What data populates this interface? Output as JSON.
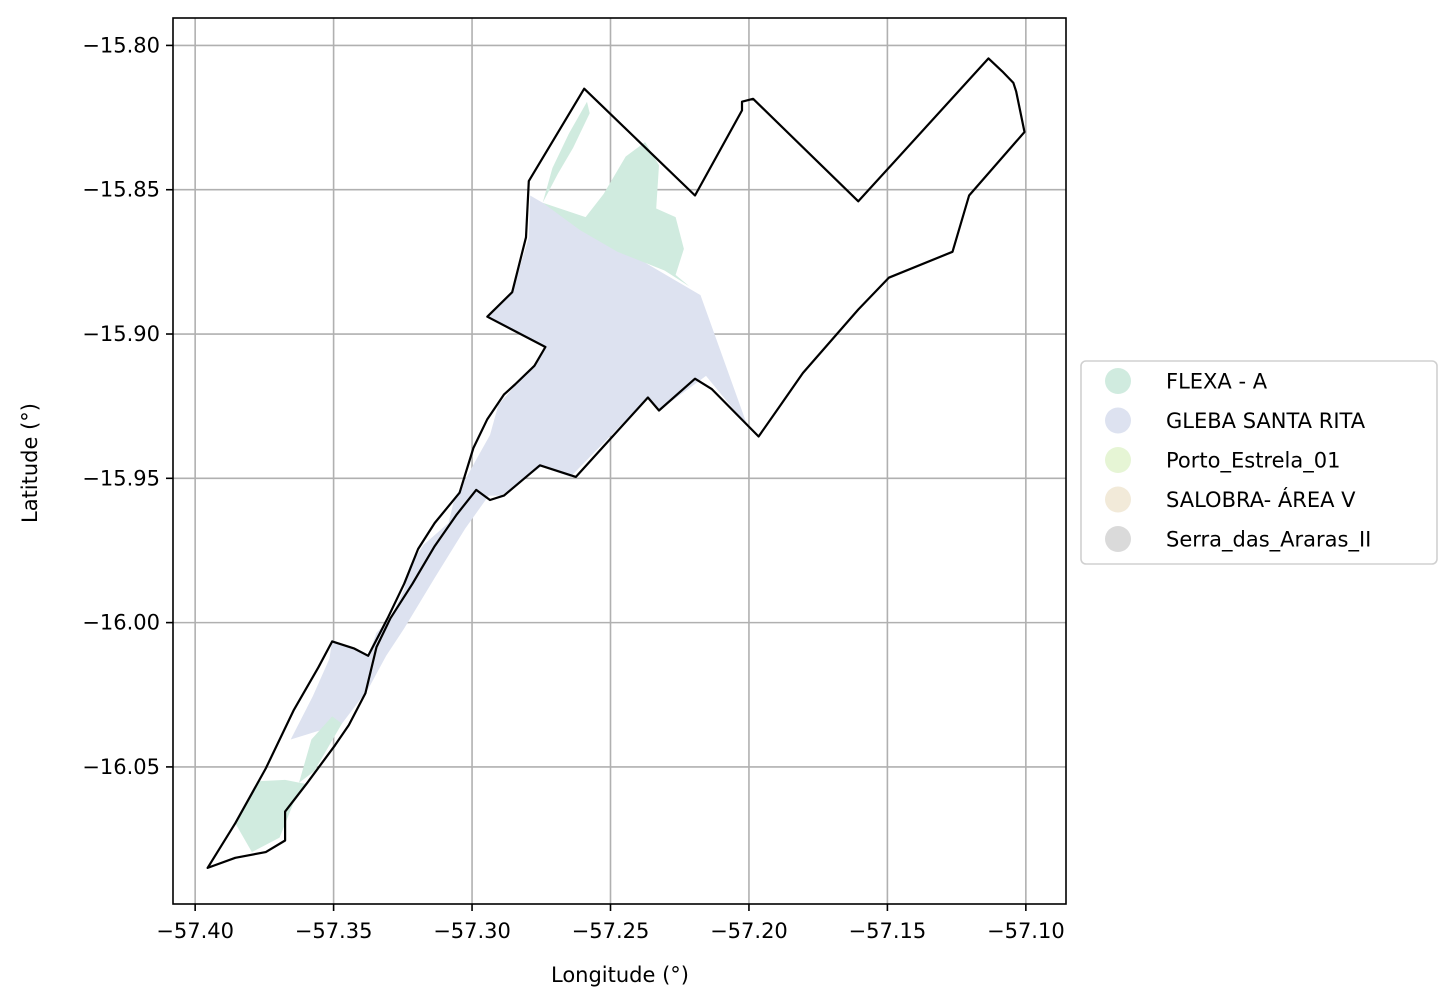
{
  "chart_data": {
    "type": "choropleth-map",
    "xlabel": "Longitude (°)",
    "ylabel": "Latitude (°)",
    "xlim": [
      -57.408,
      -57.0855
    ],
    "ylim": [
      -16.0975,
      -15.7905
    ],
    "grid": true,
    "x_ticks": [
      -57.4,
      -57.35,
      -57.3,
      -57.25,
      -57.2,
      -57.15,
      -57.1
    ],
    "x_tick_labels": [
      "−57.40",
      "−57.35",
      "−57.30",
      "−57.25",
      "−57.20",
      "−57.15",
      "−57.10"
    ],
    "y_ticks": [
      -15.8,
      -15.85,
      -15.9,
      -15.95,
      -16.0,
      -16.05
    ],
    "y_tick_labels": [
      "−15.80",
      "−15.85",
      "−15.90",
      "−15.95",
      "−16.00",
      "−16.05"
    ],
    "legend_position": "right",
    "legend": [
      {
        "label": "FLEXA - A",
        "color": "#d0ebdf"
      },
      {
        "label": "GLEBA SANTA RITA",
        "color": "#dde2f0"
      },
      {
        "label": "Porto_Estrela_01",
        "color": "#e6f5d5"
      },
      {
        "label": "SALOBRA- ÁREA V",
        "color": "#f2ead9"
      },
      {
        "label": "Serra_das_Araras_II",
        "color": "#dadada"
      }
    ],
    "regions": [
      {
        "name": "GLEBA SANTA RITA",
        "color": "#dde2f0",
        "coords": [
          [
            -57.279,
            -15.852
          ],
          [
            -57.2175,
            -15.8865
          ],
          [
            -57.2005,
            -15.932
          ],
          [
            -57.2155,
            -15.9145
          ],
          [
            -57.2325,
            -15.9265
          ],
          [
            -57.2365,
            -15.922
          ],
          [
            -57.2645,
            -15.9495
          ],
          [
            -57.275,
            -15.946
          ],
          [
            -57.2895,
            -15.956
          ],
          [
            -57.294,
            -15.956
          ],
          [
            -57.3025,
            -15.9675
          ],
          [
            -57.3135,
            -15.9845
          ],
          [
            -57.3245,
            -16.002
          ],
          [
            -57.331,
            -16.0115
          ],
          [
            -57.3375,
            -16.023
          ],
          [
            -57.347,
            -16.035
          ],
          [
            -57.3655,
            -16.0405
          ],
          [
            -57.3575,
            -16.0255
          ],
          [
            -57.3515,
            -16.0125
          ],
          [
            -57.3505,
            -16.006
          ],
          [
            -57.3445,
            -16.0085
          ],
          [
            -57.3375,
            -16.0115
          ],
          [
            -57.3345,
            -16.0035
          ],
          [
            -57.3295,
            -15.9985
          ],
          [
            -57.3245,
            -15.9885
          ],
          [
            -57.3225,
            -15.9805
          ],
          [
            -57.3175,
            -15.973
          ],
          [
            -57.3085,
            -15.9655
          ],
          [
            -57.3065,
            -15.9575
          ],
          [
            -57.2985,
            -15.9435
          ],
          [
            -57.2935,
            -15.935
          ],
          [
            -57.2905,
            -15.9245
          ],
          [
            -57.2845,
            -15.918
          ],
          [
            -57.2775,
            -15.9115
          ],
          [
            -57.2735,
            -15.9045
          ],
          [
            -57.2945,
            -15.894
          ],
          [
            -57.2855,
            -15.8855
          ],
          [
            -57.2825,
            -15.876
          ],
          [
            -57.2795,
            -15.8665
          ]
        ]
      },
      {
        "name": "FLEXA - A",
        "color": "#d0ebdf",
        "coords": [
          [
            -57.2745,
            -15.8545
          ],
          [
            -57.259,
            -15.8595
          ],
          [
            -57.2525,
            -15.8515
          ],
          [
            -57.2445,
            -15.8385
          ],
          [
            -57.2375,
            -15.8335
          ],
          [
            -57.2325,
            -15.8415
          ],
          [
            -57.2335,
            -15.8565
          ],
          [
            -57.2265,
            -15.8595
          ],
          [
            -57.2235,
            -15.8705
          ],
          [
            -57.2265,
            -15.8795
          ],
          [
            -57.2215,
            -15.8835
          ],
          [
            -57.2305,
            -15.878
          ],
          [
            -57.2475,
            -15.8715
          ],
          [
            -57.261,
            -15.864
          ]
        ]
      },
      {
        "name": "FLEXA - A",
        "color": "#d0ebdf",
        "coords": [
          [
            -57.2745,
            -15.8545
          ],
          [
            -57.271,
            -15.8425
          ],
          [
            -57.265,
            -15.8305
          ],
          [
            -57.2585,
            -15.8195
          ],
          [
            -57.2575,
            -15.8235
          ],
          [
            -57.2635,
            -15.8355
          ],
          [
            -57.269,
            -15.8445
          ]
        ]
      },
      {
        "name": "FLEXA - A",
        "color": "#d0ebdf",
        "coords": [
          [
            -57.3775,
            -16.055
          ],
          [
            -57.3855,
            -16.0695
          ],
          [
            -57.3795,
            -16.0795
          ],
          [
            -57.3695,
            -16.0745
          ],
          [
            -57.3645,
            -16.0625
          ],
          [
            -57.3595,
            -16.056
          ],
          [
            -57.3675,
            -16.0545
          ]
        ]
      },
      {
        "name": "FLEXA - A",
        "color": "#d0ebdf",
        "coords": [
          [
            -57.358,
            -16.0405
          ],
          [
            -57.3505,
            -16.0325
          ],
          [
            -57.347,
            -16.035
          ],
          [
            -57.357,
            -16.0515
          ],
          [
            -57.3625,
            -16.0555
          ]
        ]
      }
    ],
    "boundary": [
      [
        -57.2595,
        -15.815
      ],
      [
        -57.2195,
        -15.852
      ],
      [
        -57.2025,
        -15.8225
      ],
      [
        -57.2025,
        -15.8195
      ],
      [
        -57.1985,
        -15.8185
      ],
      [
        -57.1605,
        -15.854
      ],
      [
        -57.1135,
        -15.8045
      ],
      [
        -57.1085,
        -15.809
      ],
      [
        -57.1045,
        -15.813
      ],
      [
        -57.1035,
        -15.816
      ],
      [
        -57.1005,
        -15.83
      ],
      [
        -57.1205,
        -15.852
      ],
      [
        -57.1265,
        -15.8715
      ],
      [
        -57.1495,
        -15.8805
      ],
      [
        -57.1605,
        -15.8915
      ],
      [
        -57.1805,
        -15.9135
      ],
      [
        -57.1885,
        -15.9245
      ],
      [
        -57.1965,
        -15.9355
      ],
      [
        -57.2135,
        -15.919
      ],
      [
        -57.2195,
        -15.9155
      ],
      [
        -57.2325,
        -15.9265
      ],
      [
        -57.2365,
        -15.922
      ],
      [
        -57.2625,
        -15.9495
      ],
      [
        -57.2755,
        -15.9455
      ],
      [
        -57.2885,
        -15.956
      ],
      [
        -57.2935,
        -15.9575
      ],
      [
        -57.2985,
        -15.954
      ],
      [
        -57.3055,
        -15.9625
      ],
      [
        -57.3135,
        -15.9735
      ],
      [
        -57.3215,
        -15.9865
      ],
      [
        -57.3295,
        -15.9985
      ],
      [
        -57.3345,
        -16.0085
      ],
      [
        -57.3385,
        -16.0245
      ],
      [
        -57.3445,
        -16.0355
      ],
      [
        -57.3495,
        -16.0425
      ],
      [
        -57.3595,
        -16.0555
      ],
      [
        -57.3675,
        -16.0655
      ],
      [
        -57.3675,
        -16.0755
      ],
      [
        -57.3745,
        -16.0795
      ],
      [
        -57.3855,
        -16.0815
      ],
      [
        -57.3955,
        -16.085
      ],
      [
        -57.3855,
        -16.0695
      ],
      [
        -57.3745,
        -16.0505
      ],
      [
        -57.3645,
        -16.0305
      ],
      [
        -57.3555,
        -16.0155
      ],
      [
        -57.3505,
        -16.0065
      ],
      [
        -57.3425,
        -16.009
      ],
      [
        -57.3375,
        -16.0115
      ],
      [
        -57.3305,
        -15.9985
      ],
      [
        -57.3245,
        -15.9865
      ],
      [
        -57.3195,
        -15.9745
      ],
      [
        -57.3135,
        -15.9655
      ],
      [
        -57.3045,
        -15.955
      ],
      [
        -57.2995,
        -15.9395
      ],
      [
        -57.2945,
        -15.9295
      ],
      [
        -57.2885,
        -15.921
      ],
      [
        -57.2845,
        -15.9175
      ],
      [
        -57.2775,
        -15.911
      ],
      [
        -57.2735,
        -15.9045
      ],
      [
        -57.2945,
        -15.894
      ],
      [
        -57.2855,
        -15.8855
      ],
      [
        -57.2805,
        -15.8665
      ],
      [
        -57.2795,
        -15.847
      ]
    ]
  }
}
